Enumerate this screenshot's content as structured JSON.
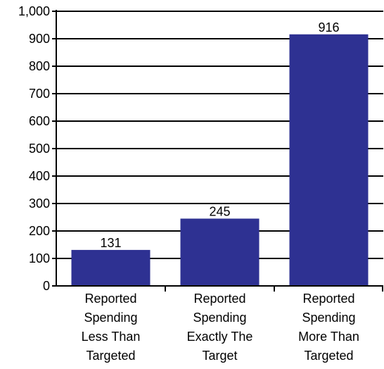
{
  "chart_data": {
    "type": "bar",
    "categories": [
      [
        "Reported",
        "Spending",
        "Less Than",
        "Targeted"
      ],
      [
        "Reported",
        "Spending",
        "Exactly The",
        "Target"
      ],
      [
        "Reported",
        "Spending",
        "More Than",
        "Targeted"
      ]
    ],
    "values": [
      131,
      245,
      916
    ],
    "data_labels": [
      "131",
      "245",
      "916"
    ],
    "y_ticks": [
      0,
      100,
      200,
      300,
      400,
      500,
      600,
      700,
      800,
      900,
      1000
    ],
    "y_tick_labels": [
      "0",
      "100",
      "200",
      "300",
      "400",
      "500",
      "600",
      "700",
      "800",
      "900",
      "1,000"
    ],
    "ylim": [
      0,
      1000
    ],
    "grid": true,
    "legend": "none",
    "bar_color": "#2e3192",
    "grid_color": "#000000"
  }
}
